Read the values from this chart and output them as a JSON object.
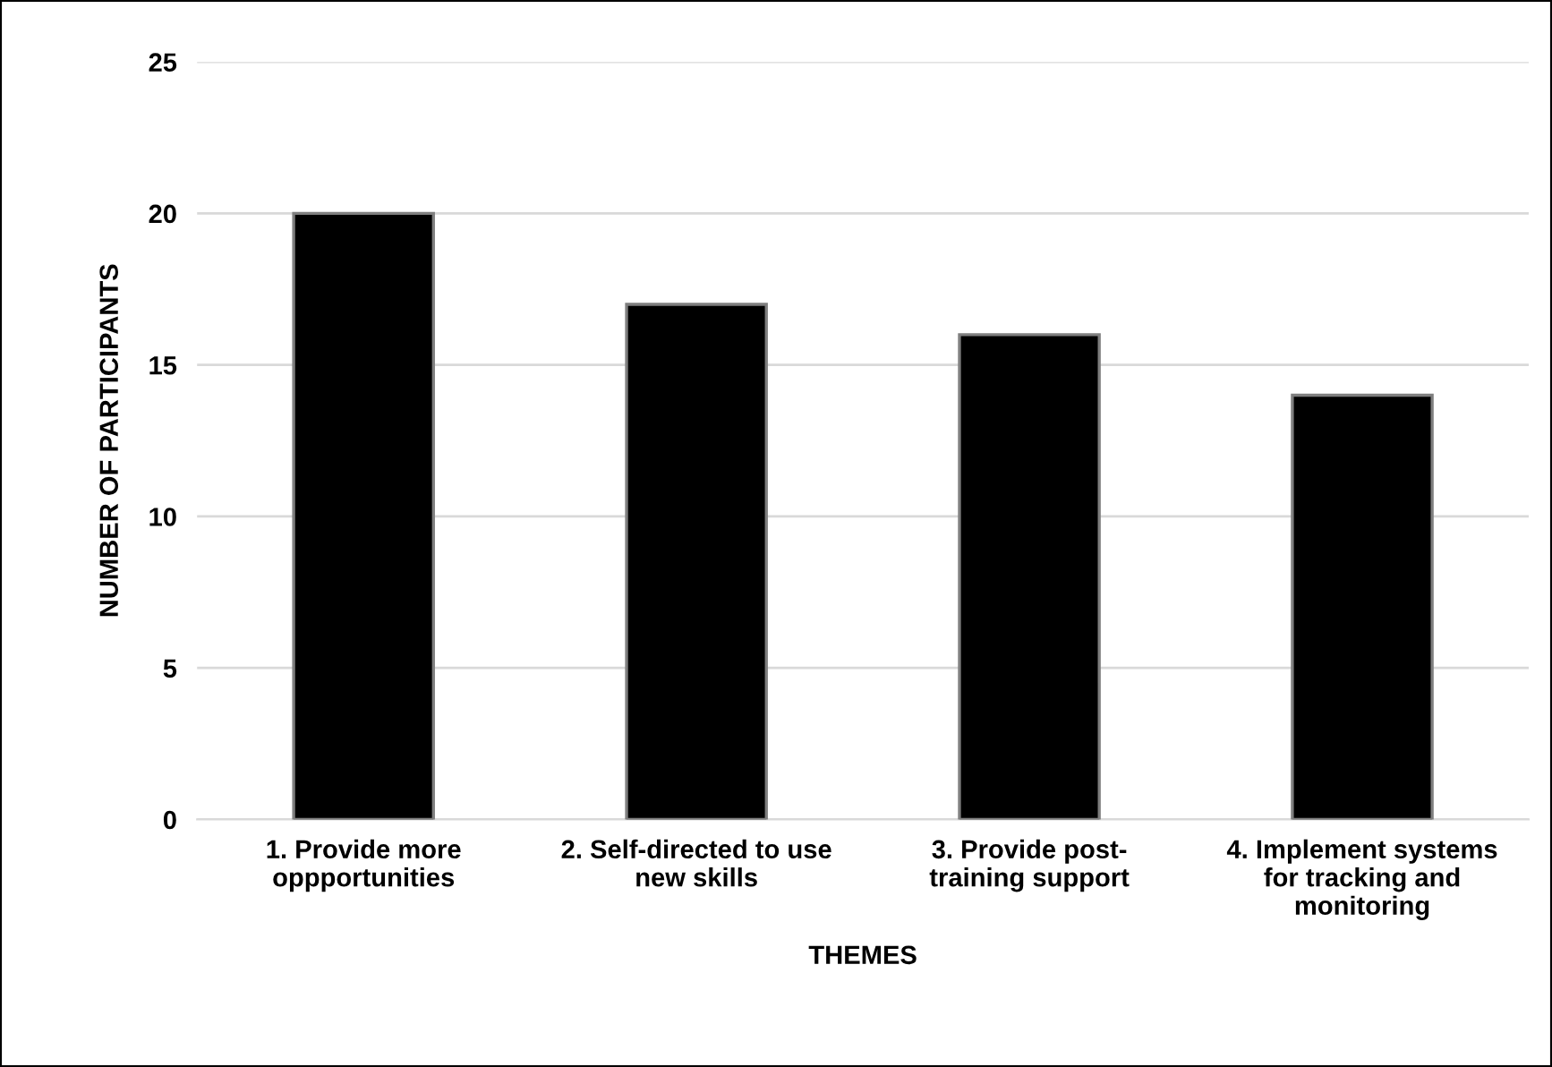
{
  "chart_data": {
    "type": "bar",
    "xlabel": "THEMES",
    "ylabel": "NUMBER OF PARTICIPANTS",
    "categories": [
      "1. Provide more\noppportunities",
      "2. Self-directed to use\nnew skills",
      "3. Provide post-\ntraining support",
      "4. Implement systems\nfor tracking and\nmonitoring"
    ],
    "values": [
      20,
      17,
      16,
      14
    ],
    "color": "#000000",
    "ylim": [
      0,
      25
    ],
    "yticks": [
      0,
      5,
      10,
      15,
      20,
      25
    ],
    "grid": "y",
    "legend": false
  }
}
